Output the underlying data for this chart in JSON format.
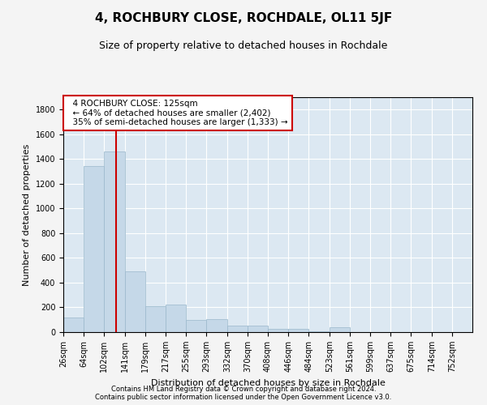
{
  "title": "4, ROCHBURY CLOSE, ROCHDALE, OL11 5JF",
  "subtitle": "Size of property relative to detached houses in Rochdale",
  "xlabel": "Distribution of detached houses by size in Rochdale",
  "ylabel": "Number of detached properties",
  "footer_line1": "Contains HM Land Registry data © Crown copyright and database right 2024.",
  "footer_line2": "Contains public sector information licensed under the Open Government Licence v3.0.",
  "annotation_title": "4 ROCHBURY CLOSE: 125sqm",
  "annotation_line1": "← 64% of detached houses are smaller (2,402)",
  "annotation_line2": "35% of semi-detached houses are larger (1,333) →",
  "bar_edges": [
    26,
    64,
    102,
    141,
    179,
    217,
    255,
    293,
    332,
    370,
    408,
    446,
    484,
    523,
    561,
    599,
    637,
    675,
    714,
    752,
    790
  ],
  "bar_heights": [
    115,
    1340,
    1460,
    490,
    210,
    220,
    100,
    105,
    55,
    55,
    25,
    25,
    5,
    40,
    0,
    0,
    0,
    0,
    0,
    0
  ],
  "bar_color": "#c5d8e8",
  "bar_edge_color": "#9ab8cc",
  "vline_color": "#cc0000",
  "vline_x": 125,
  "annotation_box_facecolor": "#ffffff",
  "annotation_box_edgecolor": "#cc0000",
  "fig_facecolor": "#f4f4f4",
  "plot_facecolor": "#dce8f2",
  "ylim": [
    0,
    1900
  ],
  "yticks": [
    0,
    200,
    400,
    600,
    800,
    1000,
    1200,
    1400,
    1600,
    1800
  ],
  "grid_color": "#ffffff",
  "title_fontsize": 11,
  "subtitle_fontsize": 9,
  "axis_fontsize": 8,
  "tick_fontsize": 7,
  "footer_fontsize": 6,
  "annotation_fontsize": 7.5
}
